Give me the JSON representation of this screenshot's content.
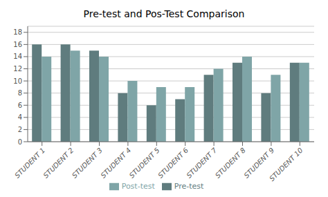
{
  "chart_data": {
    "type": "bar",
    "title": "Pre-test and Pos-Test Comparison",
    "categories": [
      "STUDENT 1",
      "STUDENT 2",
      "STUDENT 3",
      "STUDENT 4",
      "STUDENT 5",
      "STUDENT 6",
      "STUDENT 7",
      "STUDENT 8",
      "STUDENT 9",
      "STUDENT 10"
    ],
    "series": [
      {
        "name": "Pre-test",
        "color": "#5f7c7e",
        "values": [
          16,
          16,
          15,
          8,
          6,
          7,
          11,
          13,
          8,
          13
        ]
      },
      {
        "name": "Post-test",
        "color": "#7fa5a7",
        "values": [
          14,
          15,
          14,
          10,
          9,
          9,
          12,
          14,
          11,
          13
        ]
      }
    ],
    "ylim": [
      0,
      19
    ],
    "yticks": [
      0,
      2,
      4,
      6,
      8,
      10,
      12,
      14,
      16,
      18
    ],
    "grid": true,
    "legend": "bottom"
  }
}
